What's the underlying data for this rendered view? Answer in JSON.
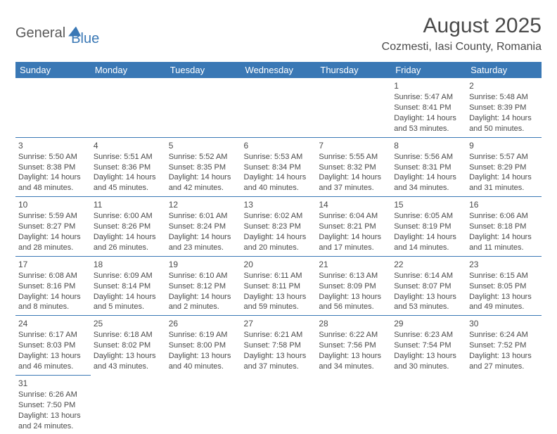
{
  "logo": {
    "part1": "General",
    "part2": "Blue"
  },
  "title": "August 2025",
  "location": "Cozmesti, Iasi County, Romania",
  "colors": {
    "header_bg": "#3a78b5",
    "header_text": "#ffffff",
    "cell_border": "#3a78b5",
    "body_text": "#4a4a4a",
    "background": "#ffffff"
  },
  "weekdays": [
    "Sunday",
    "Monday",
    "Tuesday",
    "Wednesday",
    "Thursday",
    "Friday",
    "Saturday"
  ],
  "weeks": [
    [
      null,
      null,
      null,
      null,
      null,
      {
        "day": "1",
        "sunrise": "Sunrise: 5:47 AM",
        "sunset": "Sunset: 8:41 PM",
        "daylight": "Daylight: 14 hours and 53 minutes."
      },
      {
        "day": "2",
        "sunrise": "Sunrise: 5:48 AM",
        "sunset": "Sunset: 8:39 PM",
        "daylight": "Daylight: 14 hours and 50 minutes."
      }
    ],
    [
      {
        "day": "3",
        "sunrise": "Sunrise: 5:50 AM",
        "sunset": "Sunset: 8:38 PM",
        "daylight": "Daylight: 14 hours and 48 minutes."
      },
      {
        "day": "4",
        "sunrise": "Sunrise: 5:51 AM",
        "sunset": "Sunset: 8:36 PM",
        "daylight": "Daylight: 14 hours and 45 minutes."
      },
      {
        "day": "5",
        "sunrise": "Sunrise: 5:52 AM",
        "sunset": "Sunset: 8:35 PM",
        "daylight": "Daylight: 14 hours and 42 minutes."
      },
      {
        "day": "6",
        "sunrise": "Sunrise: 5:53 AM",
        "sunset": "Sunset: 8:34 PM",
        "daylight": "Daylight: 14 hours and 40 minutes."
      },
      {
        "day": "7",
        "sunrise": "Sunrise: 5:55 AM",
        "sunset": "Sunset: 8:32 PM",
        "daylight": "Daylight: 14 hours and 37 minutes."
      },
      {
        "day": "8",
        "sunrise": "Sunrise: 5:56 AM",
        "sunset": "Sunset: 8:31 PM",
        "daylight": "Daylight: 14 hours and 34 minutes."
      },
      {
        "day": "9",
        "sunrise": "Sunrise: 5:57 AM",
        "sunset": "Sunset: 8:29 PM",
        "daylight": "Daylight: 14 hours and 31 minutes."
      }
    ],
    [
      {
        "day": "10",
        "sunrise": "Sunrise: 5:59 AM",
        "sunset": "Sunset: 8:27 PM",
        "daylight": "Daylight: 14 hours and 28 minutes."
      },
      {
        "day": "11",
        "sunrise": "Sunrise: 6:00 AM",
        "sunset": "Sunset: 8:26 PM",
        "daylight": "Daylight: 14 hours and 26 minutes."
      },
      {
        "day": "12",
        "sunrise": "Sunrise: 6:01 AM",
        "sunset": "Sunset: 8:24 PM",
        "daylight": "Daylight: 14 hours and 23 minutes."
      },
      {
        "day": "13",
        "sunrise": "Sunrise: 6:02 AM",
        "sunset": "Sunset: 8:23 PM",
        "daylight": "Daylight: 14 hours and 20 minutes."
      },
      {
        "day": "14",
        "sunrise": "Sunrise: 6:04 AM",
        "sunset": "Sunset: 8:21 PM",
        "daylight": "Daylight: 14 hours and 17 minutes."
      },
      {
        "day": "15",
        "sunrise": "Sunrise: 6:05 AM",
        "sunset": "Sunset: 8:19 PM",
        "daylight": "Daylight: 14 hours and 14 minutes."
      },
      {
        "day": "16",
        "sunrise": "Sunrise: 6:06 AM",
        "sunset": "Sunset: 8:18 PM",
        "daylight": "Daylight: 14 hours and 11 minutes."
      }
    ],
    [
      {
        "day": "17",
        "sunrise": "Sunrise: 6:08 AM",
        "sunset": "Sunset: 8:16 PM",
        "daylight": "Daylight: 14 hours and 8 minutes."
      },
      {
        "day": "18",
        "sunrise": "Sunrise: 6:09 AM",
        "sunset": "Sunset: 8:14 PM",
        "daylight": "Daylight: 14 hours and 5 minutes."
      },
      {
        "day": "19",
        "sunrise": "Sunrise: 6:10 AM",
        "sunset": "Sunset: 8:12 PM",
        "daylight": "Daylight: 14 hours and 2 minutes."
      },
      {
        "day": "20",
        "sunrise": "Sunrise: 6:11 AM",
        "sunset": "Sunset: 8:11 PM",
        "daylight": "Daylight: 13 hours and 59 minutes."
      },
      {
        "day": "21",
        "sunrise": "Sunrise: 6:13 AM",
        "sunset": "Sunset: 8:09 PM",
        "daylight": "Daylight: 13 hours and 56 minutes."
      },
      {
        "day": "22",
        "sunrise": "Sunrise: 6:14 AM",
        "sunset": "Sunset: 8:07 PM",
        "daylight": "Daylight: 13 hours and 53 minutes."
      },
      {
        "day": "23",
        "sunrise": "Sunrise: 6:15 AM",
        "sunset": "Sunset: 8:05 PM",
        "daylight": "Daylight: 13 hours and 49 minutes."
      }
    ],
    [
      {
        "day": "24",
        "sunrise": "Sunrise: 6:17 AM",
        "sunset": "Sunset: 8:03 PM",
        "daylight": "Daylight: 13 hours and 46 minutes."
      },
      {
        "day": "25",
        "sunrise": "Sunrise: 6:18 AM",
        "sunset": "Sunset: 8:02 PM",
        "daylight": "Daylight: 13 hours and 43 minutes."
      },
      {
        "day": "26",
        "sunrise": "Sunrise: 6:19 AM",
        "sunset": "Sunset: 8:00 PM",
        "daylight": "Daylight: 13 hours and 40 minutes."
      },
      {
        "day": "27",
        "sunrise": "Sunrise: 6:21 AM",
        "sunset": "Sunset: 7:58 PM",
        "daylight": "Daylight: 13 hours and 37 minutes."
      },
      {
        "day": "28",
        "sunrise": "Sunrise: 6:22 AM",
        "sunset": "Sunset: 7:56 PM",
        "daylight": "Daylight: 13 hours and 34 minutes."
      },
      {
        "day": "29",
        "sunrise": "Sunrise: 6:23 AM",
        "sunset": "Sunset: 7:54 PM",
        "daylight": "Daylight: 13 hours and 30 minutes."
      },
      {
        "day": "30",
        "sunrise": "Sunrise: 6:24 AM",
        "sunset": "Sunset: 7:52 PM",
        "daylight": "Daylight: 13 hours and 27 minutes."
      }
    ],
    [
      {
        "day": "31",
        "sunrise": "Sunrise: 6:26 AM",
        "sunset": "Sunset: 7:50 PM",
        "daylight": "Daylight: 13 hours and 24 minutes."
      },
      null,
      null,
      null,
      null,
      null,
      null
    ]
  ]
}
